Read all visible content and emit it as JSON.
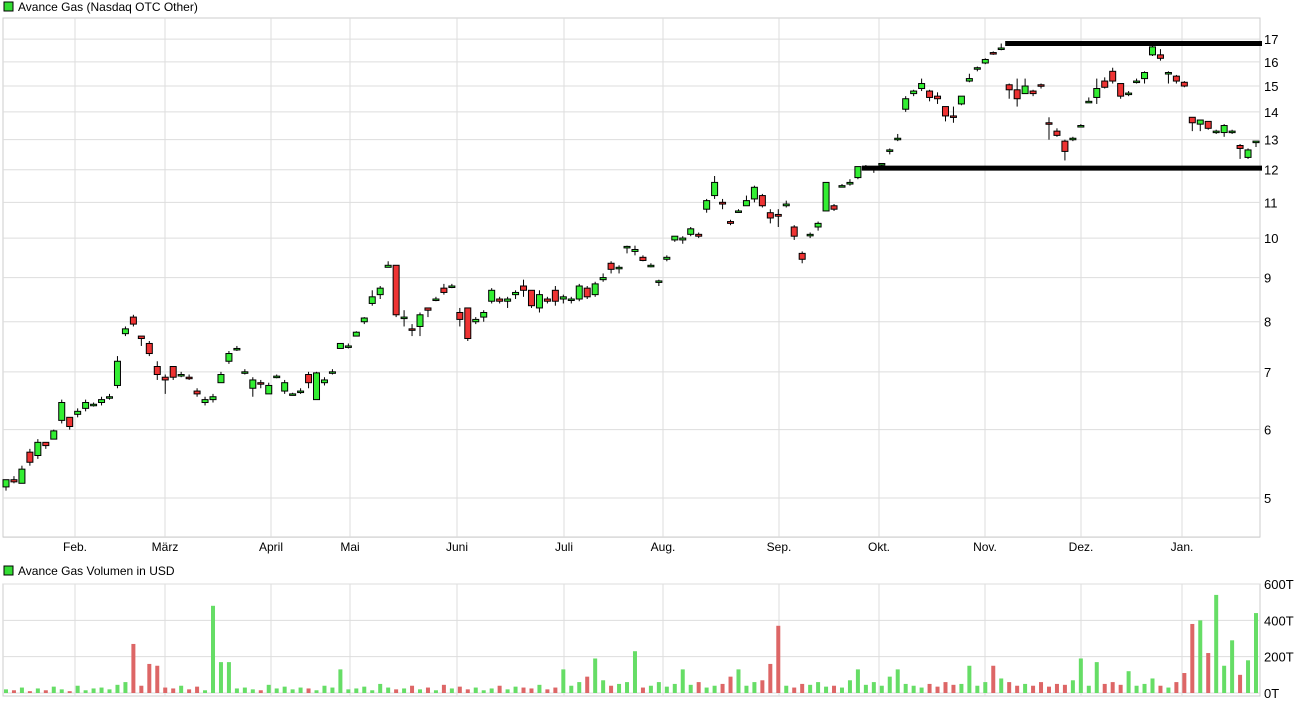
{
  "chart_data": [
    {
      "type": "candlestick",
      "title": "Avance Gas (Nasdaq OTC Other)",
      "y_scale": "log",
      "ylim": [
        4.5,
        17.5
      ],
      "y_ticks": [
        "5",
        "6",
        "7",
        "8",
        "9",
        "10",
        "11",
        "12",
        "13",
        "14",
        "15",
        "16",
        "17"
      ],
      "x_ticks": [
        "Feb.",
        "März",
        "April",
        "Mai",
        "Juni",
        "Juli",
        "Aug.",
        "Sep.",
        "Okt.",
        "Nov.",
        "Dez.",
        "Jan."
      ],
      "grid": true,
      "colors": {
        "up": "#33ee33",
        "down": "#ee3333",
        "legend": "#33dd33"
      },
      "candles_ohlc": [
        [
          5.15,
          5.25,
          5.1,
          5.25
        ],
        [
          5.25,
          5.3,
          5.2,
          5.22
        ],
        [
          5.2,
          5.45,
          5.2,
          5.4
        ],
        [
          5.65,
          5.7,
          5.45,
          5.5
        ],
        [
          5.6,
          5.85,
          5.55,
          5.8
        ],
        [
          5.8,
          5.8,
          5.7,
          5.75
        ],
        [
          5.85,
          6.0,
          5.85,
          5.98
        ],
        [
          6.15,
          6.5,
          6.1,
          6.45
        ],
        [
          6.2,
          6.2,
          6.0,
          6.05
        ],
        [
          6.25,
          6.35,
          6.2,
          6.3
        ],
        [
          6.35,
          6.5,
          6.3,
          6.45
        ],
        [
          6.42,
          6.45,
          6.38,
          6.42
        ],
        [
          6.45,
          6.55,
          6.4,
          6.5
        ],
        [
          6.55,
          6.6,
          6.5,
          6.55
        ],
        [
          6.75,
          7.3,
          6.7,
          7.2
        ],
        [
          7.75,
          7.9,
          7.7,
          7.85
        ],
        [
          8.1,
          8.15,
          7.9,
          7.95
        ],
        [
          7.7,
          7.7,
          7.5,
          7.65
        ],
        [
          7.55,
          7.6,
          7.3,
          7.35
        ],
        [
          7.1,
          7.2,
          6.85,
          6.95
        ],
        [
          6.9,
          6.95,
          6.6,
          6.85
        ],
        [
          7.1,
          7.1,
          6.85,
          6.9
        ],
        [
          6.95,
          7.0,
          6.9,
          6.95
        ],
        [
          6.9,
          6.95,
          6.85,
          6.88
        ],
        [
          6.65,
          6.7,
          6.55,
          6.6
        ],
        [
          6.45,
          6.55,
          6.4,
          6.5
        ],
        [
          6.5,
          6.6,
          6.45,
          6.55
        ],
        [
          6.8,
          7.0,
          6.8,
          6.95
        ],
        [
          7.2,
          7.4,
          7.15,
          7.35
        ],
        [
          7.45,
          7.5,
          7.4,
          7.45
        ],
        [
          7.0,
          7.05,
          6.95,
          7.0
        ],
        [
          6.7,
          6.9,
          6.55,
          6.85
        ],
        [
          6.8,
          6.85,
          6.7,
          6.78
        ],
        [
          6.6,
          6.8,
          6.6,
          6.75
        ],
        [
          6.9,
          6.95,
          6.88,
          6.92
        ],
        [
          6.65,
          6.85,
          6.6,
          6.8
        ],
        [
          6.6,
          6.62,
          6.58,
          6.6
        ],
        [
          6.65,
          6.7,
          6.6,
          6.65
        ],
        [
          6.95,
          7.0,
          6.7,
          6.8
        ],
        [
          6.5,
          7.0,
          6.5,
          6.98
        ],
        [
          6.8,
          6.9,
          6.75,
          6.85
        ],
        [
          7.0,
          7.05,
          6.95,
          7.0
        ],
        [
          7.45,
          7.55,
          7.45,
          7.55
        ],
        [
          7.5,
          7.55,
          7.45,
          7.5
        ],
        [
          7.7,
          7.8,
          7.7,
          7.78
        ],
        [
          8.0,
          8.1,
          7.95,
          8.08
        ],
        [
          8.4,
          8.7,
          8.35,
          8.55
        ],
        [
          8.6,
          8.8,
          8.5,
          8.75
        ],
        [
          9.25,
          9.4,
          9.25,
          9.3
        ],
        [
          9.3,
          9.3,
          8.1,
          8.15
        ],
        [
          8.1,
          8.25,
          7.9,
          8.1
        ],
        [
          7.85,
          7.95,
          7.7,
          7.82
        ],
        [
          7.9,
          8.2,
          7.7,
          8.15
        ],
        [
          8.3,
          8.3,
          8.1,
          8.25
        ],
        [
          8.5,
          8.55,
          8.45,
          8.5
        ],
        [
          8.75,
          8.85,
          8.6,
          8.65
        ],
        [
          8.8,
          8.85,
          8.75,
          8.8
        ],
        [
          8.2,
          8.3,
          7.9,
          8.05
        ],
        [
          8.3,
          8.3,
          7.6,
          7.65
        ],
        [
          8.0,
          8.1,
          7.95,
          8.05
        ],
        [
          8.1,
          8.25,
          8.0,
          8.2
        ],
        [
          8.45,
          8.75,
          8.4,
          8.7
        ],
        [
          8.5,
          8.55,
          8.4,
          8.45
        ],
        [
          8.45,
          8.55,
          8.3,
          8.5
        ],
        [
          8.6,
          8.7,
          8.5,
          8.65
        ],
        [
          8.8,
          8.95,
          8.55,
          8.7
        ],
        [
          8.7,
          8.7,
          8.3,
          8.35
        ],
        [
          8.3,
          8.7,
          8.2,
          8.6
        ],
        [
          8.5,
          8.55,
          8.4,
          8.45
        ],
        [
          8.7,
          8.8,
          8.35,
          8.45
        ],
        [
          8.5,
          8.6,
          8.4,
          8.55
        ],
        [
          8.5,
          8.55,
          8.4,
          8.5
        ],
        [
          8.5,
          8.85,
          8.45,
          8.8
        ],
        [
          8.75,
          8.8,
          8.5,
          8.55
        ],
        [
          8.6,
          8.9,
          8.55,
          8.85
        ],
        [
          8.95,
          9.1,
          8.9,
          9.0
        ],
        [
          9.35,
          9.4,
          9.1,
          9.2
        ],
        [
          9.25,
          9.3,
          9.1,
          9.25
        ],
        [
          9.75,
          9.8,
          9.6,
          9.78
        ],
        [
          9.65,
          9.8,
          9.55,
          9.7
        ],
        [
          9.5,
          9.55,
          9.4,
          9.42
        ],
        [
          9.3,
          9.35,
          9.25,
          9.3
        ],
        [
          8.9,
          8.95,
          8.8,
          8.92
        ],
        [
          9.45,
          9.55,
          9.4,
          9.5
        ],
        [
          9.95,
          10.05,
          9.9,
          10.05
        ],
        [
          9.95,
          10.05,
          9.85,
          10.0
        ],
        [
          10.1,
          10.3,
          10.05,
          10.25
        ],
        [
          10.1,
          10.15,
          10.0,
          10.05
        ],
        [
          10.8,
          11.1,
          10.7,
          11.05
        ],
        [
          11.2,
          11.8,
          11.1,
          11.6
        ],
        [
          11.0,
          11.1,
          10.8,
          10.95
        ],
        [
          10.45,
          10.5,
          10.35,
          10.4
        ],
        [
          10.75,
          10.8,
          10.7,
          10.75
        ],
        [
          10.9,
          11.2,
          10.9,
          11.05
        ],
        [
          11.1,
          11.5,
          11.0,
          11.45
        ],
        [
          11.2,
          11.25,
          10.85,
          10.9
        ],
        [
          10.7,
          10.8,
          10.4,
          10.55
        ],
        [
          10.65,
          10.8,
          10.3,
          10.6
        ],
        [
          10.9,
          11.05,
          10.85,
          10.95
        ],
        [
          10.3,
          10.35,
          9.95,
          10.05
        ],
        [
          9.6,
          9.65,
          9.35,
          9.45
        ],
        [
          10.1,
          10.15,
          10.0,
          10.1
        ],
        [
          10.3,
          10.45,
          10.2,
          10.4
        ],
        [
          10.75,
          11.6,
          10.75,
          11.6
        ],
        [
          10.9,
          10.95,
          10.75,
          10.8
        ],
        [
          11.5,
          11.55,
          11.45,
          11.5
        ],
        [
          11.55,
          11.7,
          11.5,
          11.6
        ],
        [
          11.75,
          12.1,
          11.7,
          12.1
        ],
        [
          12.05,
          12.15,
          12.0,
          12.05
        ],
        [
          12.0,
          12.1,
          11.9,
          12.05
        ],
        [
          12.15,
          12.2,
          12.1,
          12.2
        ],
        [
          12.6,
          12.7,
          12.5,
          12.65
        ],
        [
          13.0,
          13.2,
          12.95,
          13.05
        ],
        [
          14.1,
          14.6,
          14.0,
          14.5
        ],
        [
          14.7,
          14.85,
          14.6,
          14.8
        ],
        [
          14.9,
          15.3,
          14.8,
          15.1
        ],
        [
          14.8,
          14.85,
          14.4,
          14.55
        ],
        [
          14.6,
          14.75,
          14.3,
          14.5
        ],
        [
          14.2,
          14.2,
          13.65,
          13.85
        ],
        [
          13.85,
          14.2,
          13.6,
          13.8
        ],
        [
          14.3,
          14.6,
          14.25,
          14.6
        ],
        [
          15.2,
          15.5,
          15.15,
          15.3
        ],
        [
          15.7,
          15.8,
          15.6,
          15.75
        ],
        [
          15.95,
          16.15,
          15.9,
          16.1
        ],
        [
          16.4,
          16.45,
          16.3,
          16.35
        ],
        [
          16.55,
          16.8,
          16.5,
          16.6
        ],
        [
          15.05,
          15.1,
          14.5,
          14.85
        ],
        [
          14.85,
          15.3,
          14.2,
          14.5
        ],
        [
          14.7,
          15.3,
          14.7,
          15.0
        ],
        [
          14.8,
          14.85,
          14.6,
          14.7
        ],
        [
          15.05,
          15.1,
          14.9,
          15.0
        ],
        [
          13.6,
          13.8,
          13.0,
          13.55
        ],
        [
          13.3,
          13.4,
          13.1,
          13.15
        ],
        [
          12.95,
          13.0,
          12.3,
          12.6
        ],
        [
          13.05,
          13.1,
          12.95,
          13.05
        ],
        [
          13.5,
          13.55,
          13.45,
          13.5
        ],
        [
          14.4,
          14.55,
          14.35,
          14.4
        ],
        [
          14.55,
          15.3,
          14.3,
          14.9
        ],
        [
          15.2,
          15.35,
          14.9,
          14.95
        ],
        [
          15.6,
          15.75,
          15.1,
          15.2
        ],
        [
          15.1,
          15.1,
          14.5,
          14.6
        ],
        [
          14.7,
          14.8,
          14.6,
          14.72
        ],
        [
          15.2,
          15.3,
          15.1,
          15.2
        ],
        [
          15.3,
          15.6,
          15.1,
          15.55
        ],
        [
          16.3,
          16.8,
          16.25,
          16.65
        ],
        [
          16.3,
          16.55,
          16.05,
          16.15
        ],
        [
          15.55,
          15.6,
          15.1,
          15.55
        ],
        [
          15.4,
          15.45,
          15.1,
          15.2
        ],
        [
          15.15,
          15.2,
          14.95,
          15.0
        ],
        [
          13.8,
          13.8,
          13.3,
          13.6
        ],
        [
          13.55,
          13.7,
          13.3,
          13.7
        ],
        [
          13.65,
          13.65,
          13.35,
          13.4
        ],
        [
          13.3,
          13.35,
          13.2,
          13.3
        ],
        [
          13.25,
          13.55,
          13.1,
          13.5
        ],
        [
          13.3,
          13.35,
          13.2,
          13.3
        ],
        [
          12.8,
          12.85,
          12.35,
          12.7
        ],
        [
          12.4,
          12.7,
          12.35,
          12.65
        ],
        [
          12.95,
          12.95,
          12.75,
          12.95
        ]
      ],
      "horizontal_levels": [
        {
          "price": 16.8,
          "from_candle": 126
        },
        {
          "price": 12.05,
          "from_candle": 108
        }
      ]
    },
    {
      "type": "bar",
      "title": "Avance Gas Volumen in USD",
      "ylim": [
        0,
        600
      ],
      "y_ticks": [
        "0T",
        "200T",
        "400T",
        "600T"
      ],
      "unit": "T",
      "grid": true,
      "colors": {
        "up": "#66dd66",
        "down": "#dd6666",
        "legend": "#33dd33"
      },
      "values": [
        20,
        15,
        30,
        10,
        25,
        15,
        35,
        20,
        10,
        40,
        15,
        25,
        30,
        20,
        45,
        60,
        270,
        40,
        160,
        150,
        30,
        25,
        40,
        20,
        35,
        15,
        480,
        170,
        170,
        25,
        30,
        20,
        15,
        45,
        25,
        35,
        20,
        30,
        25,
        15,
        40,
        30,
        130,
        20,
        25,
        35,
        15,
        50,
        30,
        20,
        25,
        40,
        20,
        30,
        15,
        45,
        25,
        35,
        20,
        30,
        15,
        25,
        40,
        20,
        35,
        30,
        25,
        45,
        20,
        30,
        130,
        40,
        60,
        90,
        190,
        70,
        40,
        50,
        60,
        230,
        30,
        40,
        60,
        35,
        50,
        130,
        45,
        60,
        30,
        40,
        50,
        90,
        130,
        40,
        60,
        70,
        160,
        370,
        40,
        30,
        50,
        45,
        60,
        35,
        40,
        30,
        70,
        130,
        45,
        60,
        40,
        90,
        130,
        50,
        40,
        30,
        50,
        35,
        60,
        45,
        50,
        150,
        40,
        60,
        150,
        80,
        60,
        40,
        50,
        40,
        60,
        35,
        50,
        45,
        70,
        190,
        40,
        170,
        50,
        60,
        45,
        120,
        40,
        50,
        80,
        40,
        30,
        60,
        110,
        380,
        400,
        220,
        540,
        150,
        290,
        100,
        180,
        440
      ]
    }
  ]
}
